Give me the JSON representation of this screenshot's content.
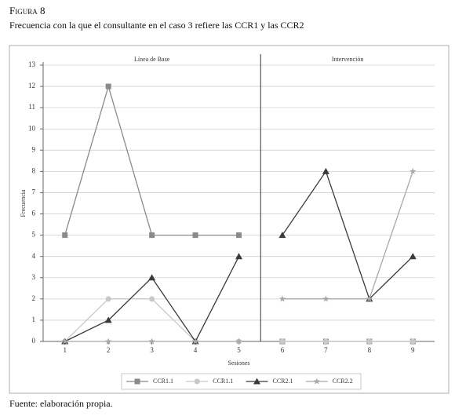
{
  "figure_label": "Figura 8",
  "caption": "Frecuencia con la que el consultante en el caso 3 refiere las CCR1 y las CCR2",
  "source": "Fuente: elaboración propia.",
  "chart_data": {
    "type": "line",
    "x_label": "Sesiones",
    "y_label": "Frecuencia",
    "x": [
      1,
      2,
      3,
      4,
      5,
      6,
      7,
      8,
      9
    ],
    "xlim": [
      0.5,
      9.5
    ],
    "xticks": [
      1,
      2,
      3,
      4,
      5,
      6,
      7,
      8,
      9
    ],
    "ylim": [
      0,
      13
    ],
    "yticks": [
      0,
      1,
      2,
      3,
      4,
      5,
      6,
      7,
      8,
      9,
      10,
      11,
      12,
      13
    ],
    "grid": true,
    "phases": [
      {
        "label": "Línea de Base",
        "start": 1
      },
      {
        "label": "Intervención",
        "start": 6
      }
    ],
    "series": [
      {
        "name": "CCR1.1",
        "color": "#8a8a8a",
        "marker": "square",
        "values": [
          5,
          12,
          5,
          5,
          5,
          0,
          0,
          0,
          0
        ]
      },
      {
        "name": "CCR1.1",
        "color": "#c8c8c8",
        "marker": "circle",
        "values": [
          0,
          2,
          2,
          0,
          0,
          0,
          0,
          0,
          0
        ]
      },
      {
        "name": "CCR2.1",
        "color": "#3a3a3a",
        "marker": "triangle",
        "values": [
          0,
          1,
          3,
          0,
          4,
          5,
          8,
          2,
          4
        ]
      },
      {
        "name": "CCR2.2",
        "color": "#a8a8a8",
        "marker": "star",
        "values": [
          0,
          0,
          0,
          0,
          0,
          2,
          2,
          2,
          8
        ]
      }
    ]
  }
}
